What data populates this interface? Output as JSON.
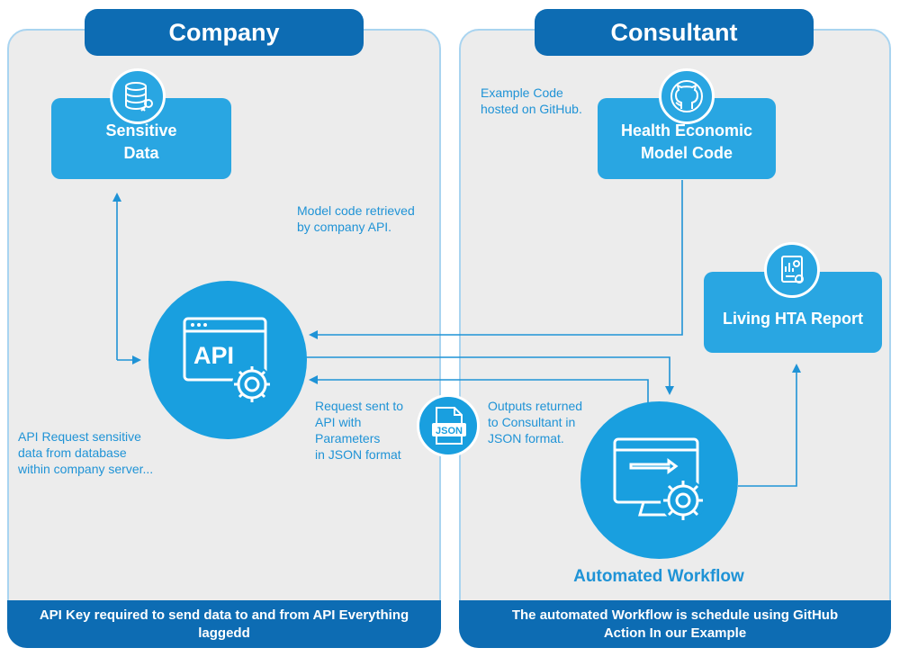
{
  "company": {
    "title": "Company",
    "footer": "API Key required to send data to and from API Everything laggedd",
    "sensitive_data_label": "Sensitive\nData",
    "api_label": "API",
    "note_request": "API Request sensitive\ndata from database\nwithin company server..."
  },
  "consultant": {
    "title": "Consultant",
    "footer": "The automated Workflow is schedule using GitHub\nAction In our Example",
    "model_code_label": "Health Economic\nModel Code",
    "report_label": "Living HTA Report",
    "workflow_label": "Automated Workflow",
    "note_github": "Example Code\nhosted on GitHub."
  },
  "flow": {
    "note_retrieved": "Model code retrieved\nby company API.",
    "note_request_sent": "Request sent to\nAPI  with\nParameters\nin JSON format",
    "note_outputs": "Outputs returned\nto Consultant in\nJSON format.",
    "json_badge": "JSON"
  },
  "colors": {
    "header": "#0d6cb3",
    "node": "#29a6e2",
    "panel": "#ececec",
    "panel_border": "#a9d4f0",
    "note_text": "#1f93d6"
  },
  "icons": [
    "database-key-icon",
    "github-icon",
    "report-icon",
    "api-gear-icon",
    "json-file-icon",
    "monitor-gear-icon"
  ]
}
